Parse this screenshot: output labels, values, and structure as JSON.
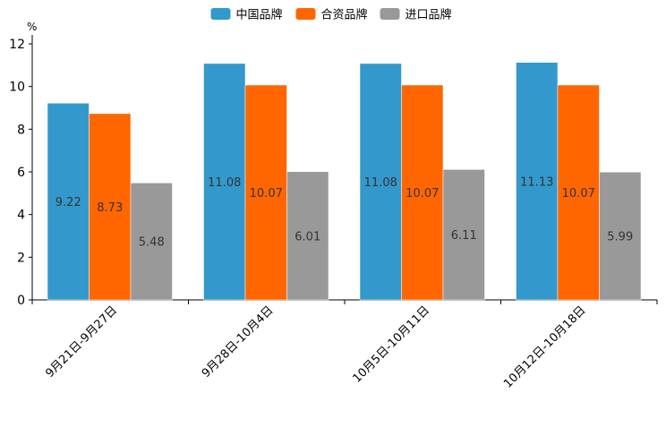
{
  "chart_data": {
    "type": "bar",
    "title": "",
    "xlabel": "",
    "ylabel": "%",
    "ylim": [
      0,
      12
    ],
    "yticks": [
      0,
      2,
      4,
      6,
      8,
      10,
      12
    ],
    "grid": false,
    "legend_position": "top-center",
    "categories": [
      "9月21日-9月27日",
      "9月28日-10月4日",
      "10月5日-10月11日",
      "10月12日-10月18日"
    ],
    "series": [
      {
        "name": "中国品牌",
        "color": "#3399cc",
        "values": [
          9.22,
          11.08,
          11.08,
          11.13
        ],
        "labels": [
          "9.22",
          "11.08",
          "11.08",
          "11.13"
        ]
      },
      {
        "name": "合资品牌",
        "color": "#ff6600",
        "values": [
          8.73,
          10.07,
          10.07,
          10.07
        ],
        "labels": [
          "8.73",
          "10.07",
          "10.07",
          "10.07"
        ]
      },
      {
        "name": "进口品牌",
        "color": "#999999",
        "values": [
          5.48,
          6.01,
          6.11,
          5.99
        ],
        "labels": [
          "5.48",
          "6.01",
          "6.11",
          "5.99"
        ]
      }
    ]
  }
}
